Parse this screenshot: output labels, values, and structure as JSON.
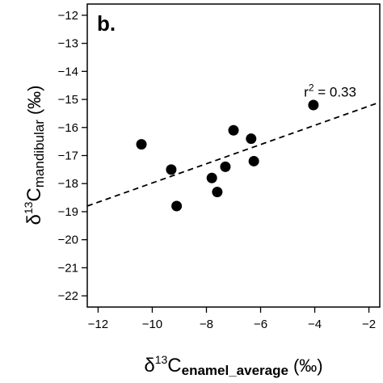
{
  "chart_data": {
    "type": "scatter",
    "panel_label": "b.",
    "xlabel": {
      "delta": "δ",
      "superscript": "13",
      "element": "C",
      "subscript": "enamel_average",
      "unit": "(‰)"
    },
    "ylabel": {
      "delta": "δ",
      "superscript": "13",
      "element": "C",
      "subscript": "mandibular",
      "unit": "(‰)"
    },
    "xlim": [
      -12.4,
      -1.6
    ],
    "ylim": [
      -22.4,
      -11.6
    ],
    "xticks": [
      -12,
      -10,
      -8,
      -6,
      -4,
      -2
    ],
    "xtick_labels": [
      "−12",
      "−10",
      "−8",
      "−6",
      "−4",
      "−2"
    ],
    "yticks": [
      -22,
      -21,
      -20,
      -19,
      -18,
      -17,
      -16,
      -15,
      -14,
      -13,
      -12
    ],
    "ytick_labels": [
      "−22",
      "−21",
      "−20",
      "−19",
      "−18",
      "−17",
      "−16",
      "−15",
      "−14",
      "−13",
      "−12"
    ],
    "points": [
      {
        "x": -10.4,
        "y": -16.6
      },
      {
        "x": -9.3,
        "y": -17.5
      },
      {
        "x": -9.1,
        "y": -18.8
      },
      {
        "x": -7.8,
        "y": -17.8
      },
      {
        "x": -7.6,
        "y": -18.3
      },
      {
        "x": -7.3,
        "y": -17.4
      },
      {
        "x": -7.0,
        "y": -16.1
      },
      {
        "x": -6.35,
        "y": -16.4
      },
      {
        "x": -6.25,
        "y": -17.2
      },
      {
        "x": -4.05,
        "y": -15.2
      }
    ],
    "trendline": {
      "style": "dashed",
      "start": {
        "x": -12.4,
        "y": -18.8
      },
      "end": {
        "x": -1.6,
        "y": -15.1
      }
    },
    "annotation": {
      "r_label": "r",
      "r_superscript": "2",
      "text": " = 0.33",
      "anchor": {
        "x": -4.4,
        "y": -14.9
      }
    },
    "grid": false,
    "legend": "none"
  }
}
